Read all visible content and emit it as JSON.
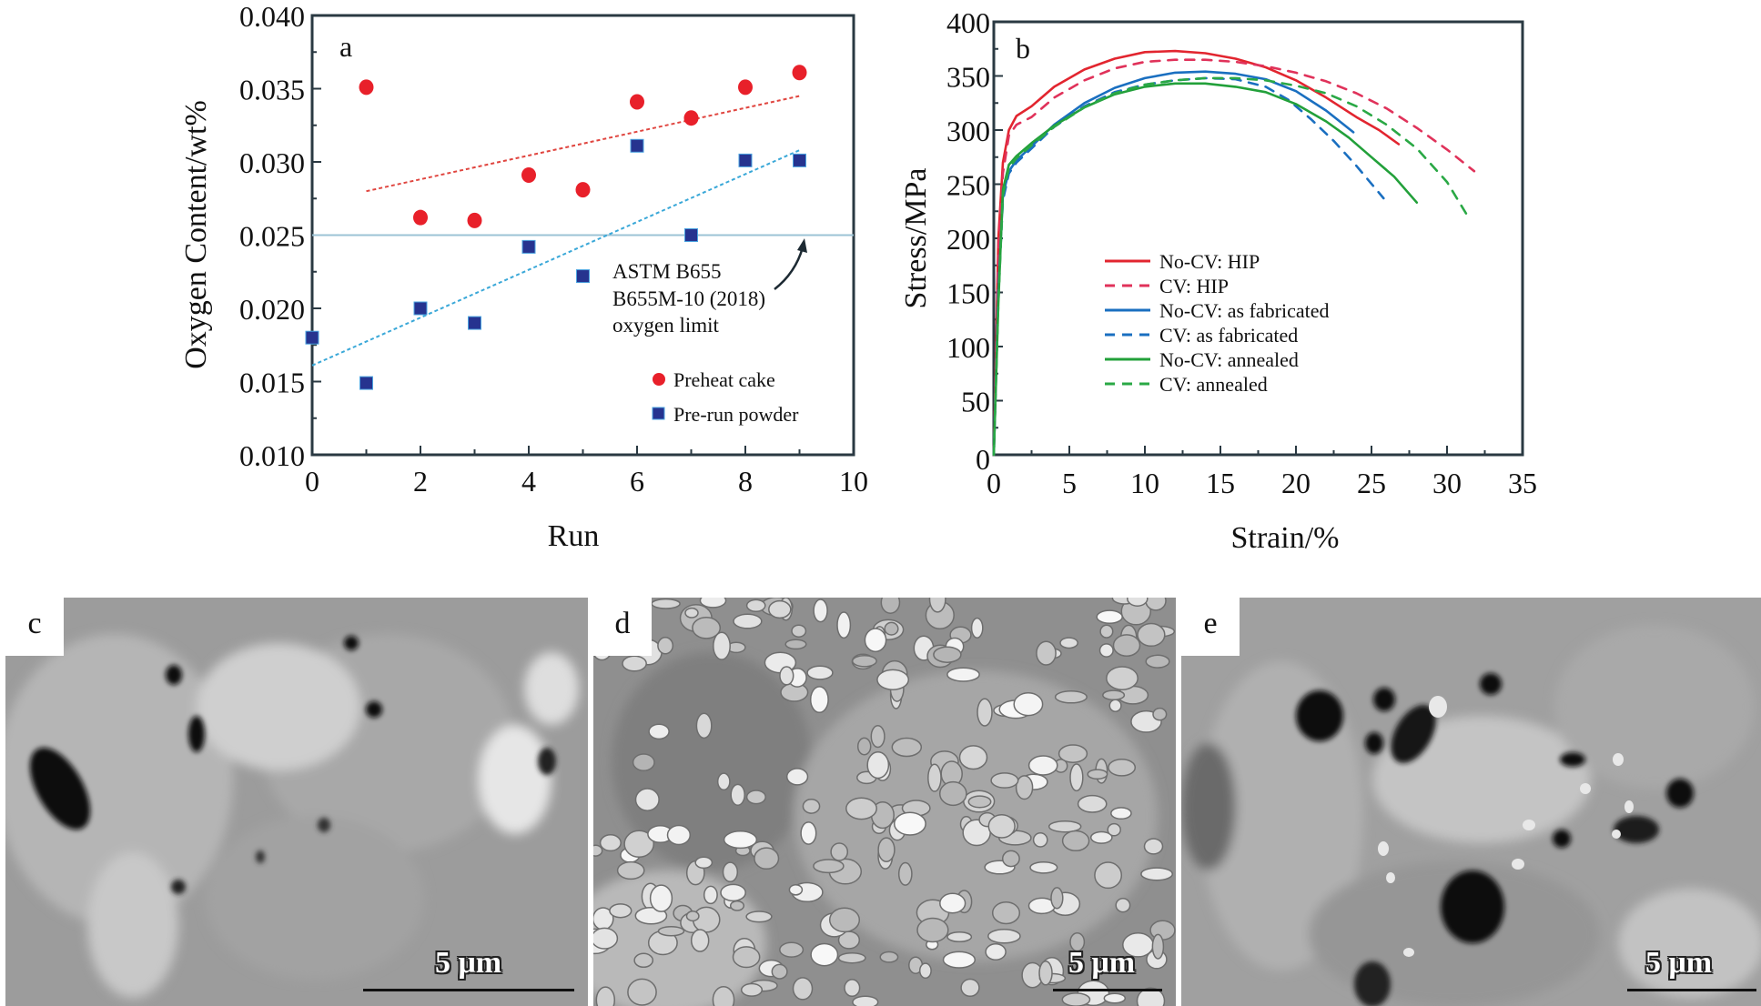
{
  "chart_data": [
    {
      "type": "scatter",
      "panel_label": "a",
      "xlabel": "Run",
      "ylabel": "Oxygen Content/wt%",
      "xlim": [
        0,
        10
      ],
      "ylim": [
        0.01,
        0.04
      ],
      "x_ticks": [
        "0",
        "2",
        "4",
        "6",
        "8",
        "10"
      ],
      "y_ticks": [
        "0.010",
        "0.015",
        "0.020",
        "0.025",
        "0.030",
        "0.035",
        "0.040"
      ],
      "series": [
        {
          "name": "Preheat cake",
          "marker": "circle",
          "color": "#e8202a",
          "x": [
            1,
            2,
            3,
            4,
            5,
            6,
            7,
            8,
            9
          ],
          "y": [
            0.0351,
            0.0262,
            0.026,
            0.0291,
            0.0281,
            0.0341,
            0.033,
            0.0351,
            0.0361
          ],
          "trend": {
            "x": [
              1,
              9
            ],
            "y": [
              0.028,
              0.0345
            ],
            "color": "#e0453f"
          }
        },
        {
          "name": "Pre-run powder",
          "marker": "square",
          "color": "#26338f",
          "x": [
            0,
            1,
            2,
            3,
            4,
            5,
            6,
            7,
            8,
            9
          ],
          "y": [
            0.018,
            0.0149,
            0.02,
            0.019,
            0.0242,
            0.0222,
            0.0311,
            0.025,
            0.0301,
            0.0301
          ],
          "trend": {
            "x": [
              0,
              9
            ],
            "y": [
              0.0161,
              0.0308
            ],
            "color": "#3aa8d8"
          }
        }
      ],
      "reference_line": {
        "y": 0.025,
        "color": "#9cc3d5"
      },
      "annotation": {
        "lines": [
          "ASTM B655",
          "B655M-10 (2018)",
          "oxygen limit"
        ],
        "arrow_to": {
          "x": 9,
          "y": 0.025
        }
      },
      "legend": {
        "placement": "bottom-right"
      }
    },
    {
      "type": "line",
      "panel_label": "b",
      "xlabel": "Strain/%",
      "ylabel": "Stress/MPa",
      "xlim": [
        0,
        35
      ],
      "ylim": [
        0,
        400
      ],
      "x_ticks": [
        "0",
        "5",
        "10",
        "15",
        "20",
        "25",
        "30",
        "35"
      ],
      "y_ticks": [
        "0",
        "50",
        "100",
        "150",
        "200",
        "250",
        "300",
        "350",
        "400"
      ],
      "series": [
        {
          "name": "No-CV: HIP",
          "color": "#e2252f",
          "dash": "solid",
          "x": [
            0,
            0.3,
            0.6,
            1.0,
            1.5,
            2.5,
            4,
            6,
            8,
            10,
            12,
            14,
            16,
            18,
            20,
            22,
            24,
            25.5,
            26.8
          ],
          "y": [
            0,
            200,
            270,
            300,
            313,
            322,
            340,
            356,
            366,
            372,
            373,
            371,
            366,
            358,
            346,
            330,
            312,
            300,
            287
          ]
        },
        {
          "name": "CV: HIP",
          "color": "#e0325a",
          "dash": "dashed",
          "x": [
            0,
            0.3,
            0.6,
            1.0,
            1.5,
            2.5,
            4,
            6,
            8,
            10,
            12,
            14,
            16,
            18,
            20,
            22,
            24,
            26,
            28,
            30,
            31.8
          ],
          "y": [
            0,
            190,
            260,
            295,
            305,
            312,
            330,
            346,
            357,
            363,
            365,
            365,
            363,
            359,
            353,
            345,
            334,
            320,
            302,
            282,
            262
          ]
        },
        {
          "name": "No-CV: as fabricated",
          "color": "#1a6fc0",
          "dash": "solid",
          "x": [
            0,
            0.3,
            0.6,
            1.0,
            1.5,
            2.5,
            4,
            6,
            8,
            10,
            12,
            14,
            16,
            18,
            20,
            22,
            23.8
          ],
          "y": [
            0,
            150,
            240,
            262,
            272,
            285,
            305,
            325,
            339,
            348,
            353,
            354,
            352,
            347,
            336,
            318,
            298
          ]
        },
        {
          "name": "CV: as fabricated",
          "color": "#1a6fc0",
          "dash": "dashed",
          "x": [
            0,
            0.3,
            0.6,
            1.0,
            1.5,
            2.5,
            4,
            6,
            8,
            10,
            12,
            14,
            16,
            18,
            19.5,
            21,
            22.5,
            24,
            25.8
          ],
          "y": [
            0,
            150,
            235,
            260,
            270,
            283,
            303,
            322,
            335,
            342,
            346,
            348,
            347,
            340,
            328,
            310,
            290,
            267,
            237
          ]
        },
        {
          "name": "No-CV: annealed",
          "color": "#22a03a",
          "dash": "solid",
          "x": [
            0,
            0.3,
            0.6,
            1.0,
            1.5,
            2.5,
            4,
            6,
            8,
            10,
            12,
            14,
            16,
            18,
            20,
            22,
            23.5,
            25,
            26.5,
            28
          ],
          "y": [
            0,
            140,
            245,
            268,
            276,
            288,
            304,
            321,
            333,
            340,
            343,
            343,
            340,
            335,
            324,
            308,
            293,
            275,
            257,
            233
          ]
        },
        {
          "name": "CV: annealed",
          "color": "#2aa845",
          "dash": "dashed",
          "x": [
            0,
            0.3,
            0.6,
            1.0,
            1.5,
            2.5,
            4,
            6,
            8,
            10,
            12,
            14,
            16,
            18,
            20,
            22,
            24,
            26,
            28,
            30,
            31.3
          ],
          "y": [
            0,
            140,
            240,
            265,
            274,
            286,
            303,
            321,
            334,
            342,
            346,
            348,
            348,
            346,
            341,
            334,
            322,
            305,
            283,
            252,
            222
          ]
        }
      ],
      "legend": {
        "placement": "center-left"
      }
    }
  ],
  "micrographs": [
    {
      "label": "c",
      "scale": "5 μm"
    },
    {
      "label": "d",
      "scale": "5 μm"
    },
    {
      "label": "e",
      "scale": "5 μm"
    }
  ]
}
